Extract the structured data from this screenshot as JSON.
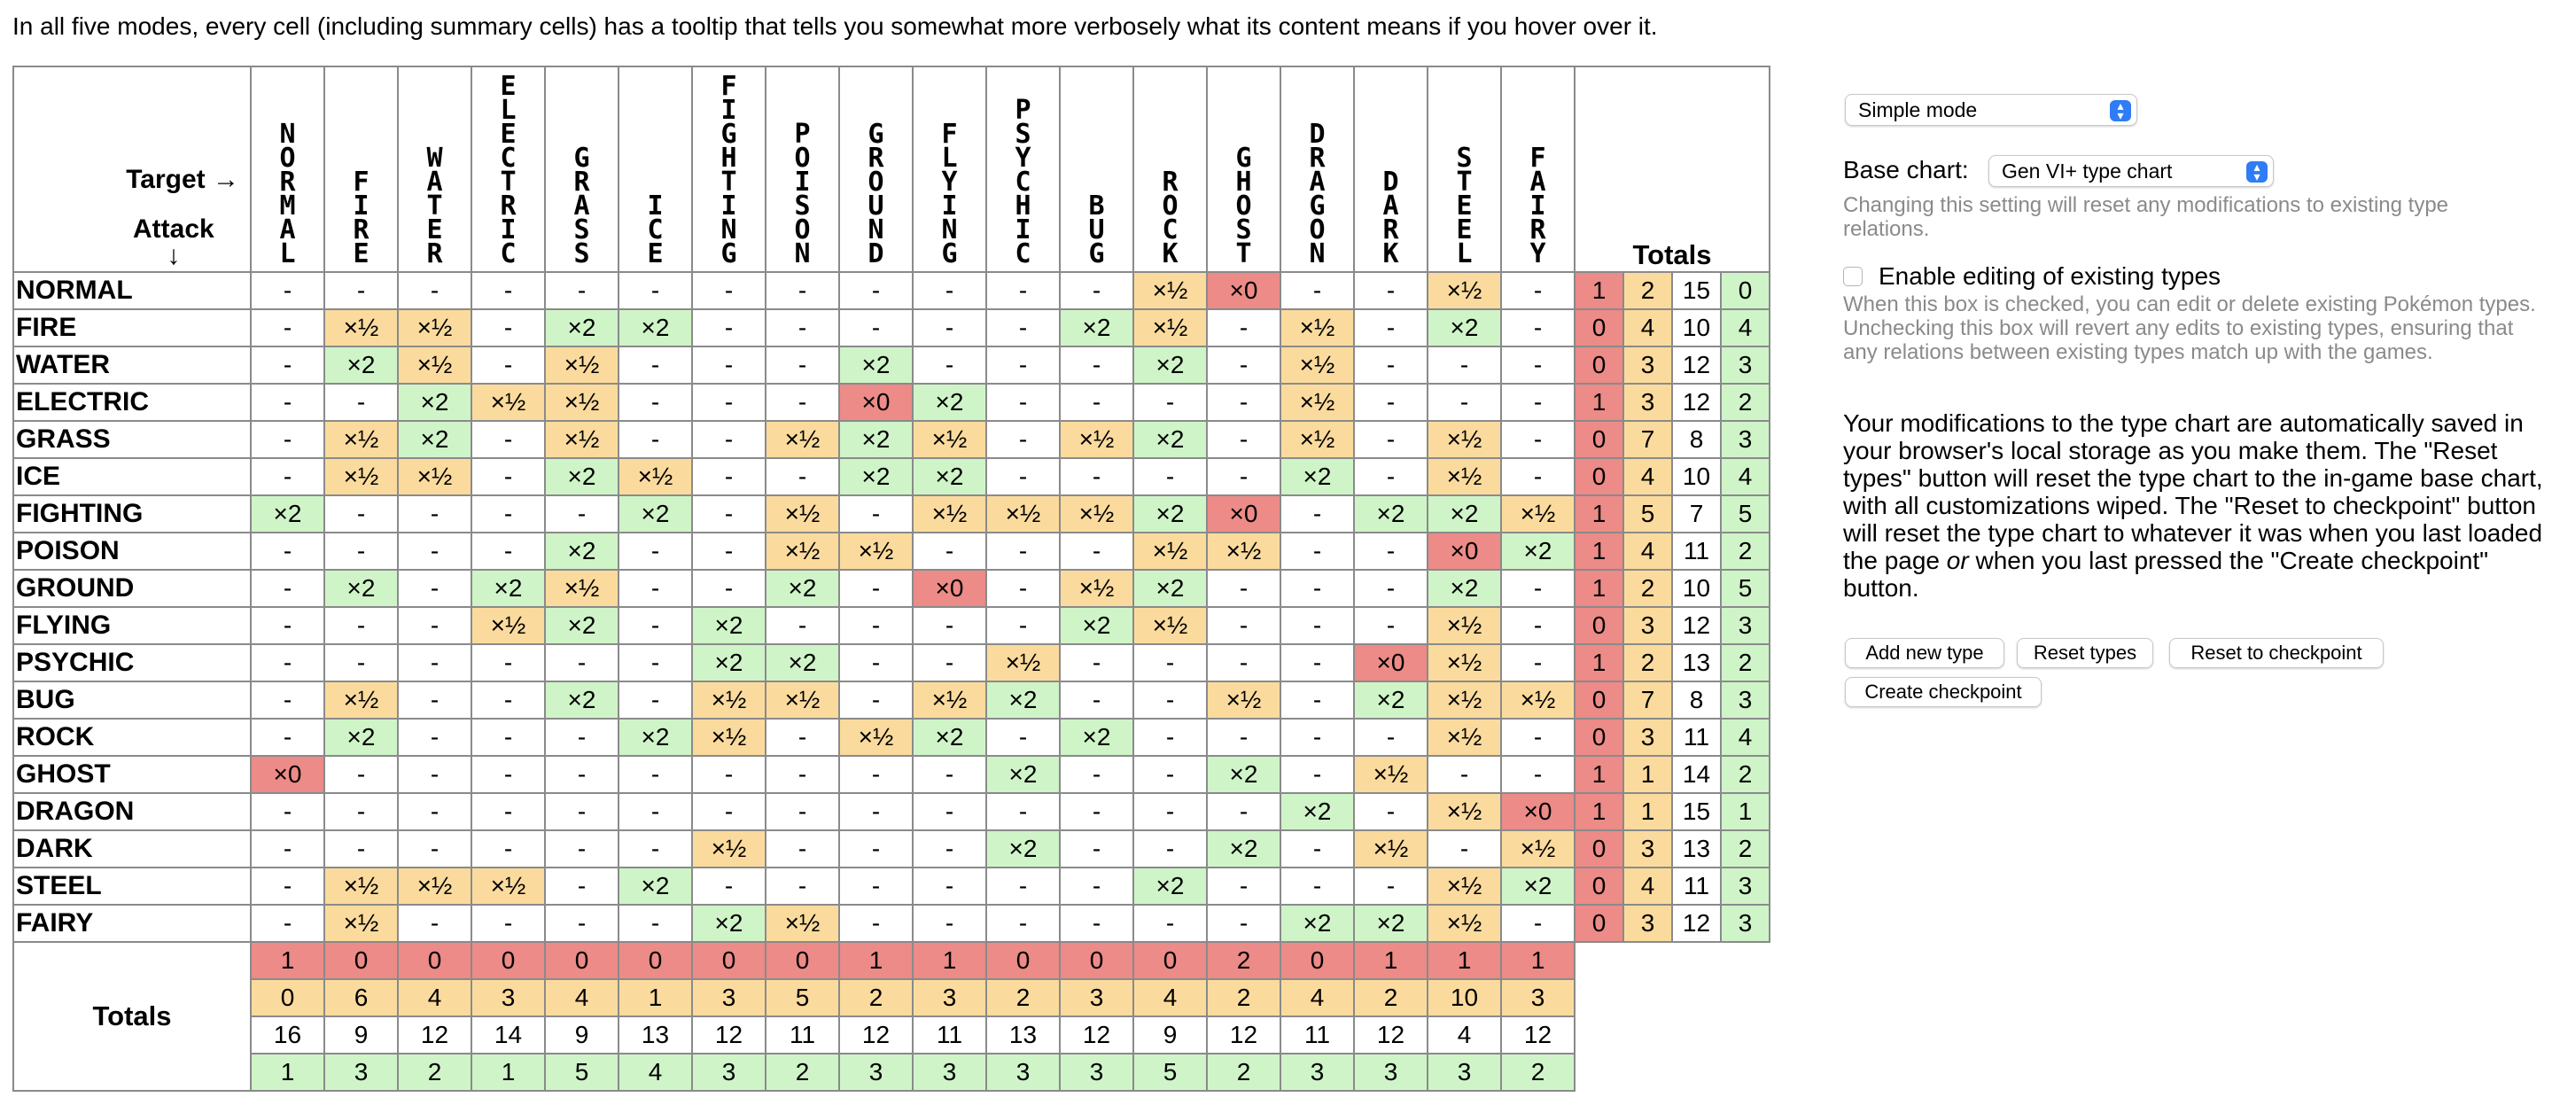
{
  "intro": "In all five modes, every cell (including summary cells) has a tooltip that tells you somewhat more verbosely what its content means if you hover over it.",
  "corner": {
    "target": "Target →",
    "attack": "Attack",
    "attack_arrow": "↓"
  },
  "types": [
    "NORMAL",
    "FIRE",
    "WATER",
    "ELECTRIC",
    "GRASS",
    "ICE",
    "FIGHTING",
    "POISON",
    "GROUND",
    "FLYING",
    "PSYCHIC",
    "BUG",
    "ROCK",
    "GHOST",
    "DRAGON",
    "DARK",
    "STEEL",
    "FAIRY"
  ],
  "totals_label": "Totals",
  "matrix": [
    [
      "-",
      "-",
      "-",
      "-",
      "-",
      "-",
      "-",
      "-",
      "-",
      "-",
      "-",
      "-",
      "×½",
      "×0",
      "-",
      "-",
      "×½",
      "-"
    ],
    [
      "-",
      "×½",
      "×½",
      "-",
      "×2",
      "×2",
      "-",
      "-",
      "-",
      "-",
      "-",
      "×2",
      "×½",
      "-",
      "×½",
      "-",
      "×2",
      "-"
    ],
    [
      "-",
      "×2",
      "×½",
      "-",
      "×½",
      "-",
      "-",
      "-",
      "×2",
      "-",
      "-",
      "-",
      "×2",
      "-",
      "×½",
      "-",
      "-",
      "-"
    ],
    [
      "-",
      "-",
      "×2",
      "×½",
      "×½",
      "-",
      "-",
      "-",
      "×0",
      "×2",
      "-",
      "-",
      "-",
      "-",
      "×½",
      "-",
      "-",
      "-"
    ],
    [
      "-",
      "×½",
      "×2",
      "-",
      "×½",
      "-",
      "-",
      "×½",
      "×2",
      "×½",
      "-",
      "×½",
      "×2",
      "-",
      "×½",
      "-",
      "×½",
      "-"
    ],
    [
      "-",
      "×½",
      "×½",
      "-",
      "×2",
      "×½",
      "-",
      "-",
      "×2",
      "×2",
      "-",
      "-",
      "-",
      "-",
      "×2",
      "-",
      "×½",
      "-"
    ],
    [
      "×2",
      "-",
      "-",
      "-",
      "-",
      "×2",
      "-",
      "×½",
      "-",
      "×½",
      "×½",
      "×½",
      "×2",
      "×0",
      "-",
      "×2",
      "×2",
      "×½"
    ],
    [
      "-",
      "-",
      "-",
      "-",
      "×2",
      "-",
      "-",
      "×½",
      "×½",
      "-",
      "-",
      "-",
      "×½",
      "×½",
      "-",
      "-",
      "×0",
      "×2"
    ],
    [
      "-",
      "×2",
      "-",
      "×2",
      "×½",
      "-",
      "-",
      "×2",
      "-",
      "×0",
      "-",
      "×½",
      "×2",
      "-",
      "-",
      "-",
      "×2",
      "-"
    ],
    [
      "-",
      "-",
      "-",
      "×½",
      "×2",
      "-",
      "×2",
      "-",
      "-",
      "-",
      "-",
      "×2",
      "×½",
      "-",
      "-",
      "-",
      "×½",
      "-"
    ],
    [
      "-",
      "-",
      "-",
      "-",
      "-",
      "-",
      "×2",
      "×2",
      "-",
      "-",
      "×½",
      "-",
      "-",
      "-",
      "-",
      "×0",
      "×½",
      "-"
    ],
    [
      "-",
      "×½",
      "-",
      "-",
      "×2",
      "-",
      "×½",
      "×½",
      "-",
      "×½",
      "×2",
      "-",
      "-",
      "×½",
      "-",
      "×2",
      "×½",
      "×½"
    ],
    [
      "-",
      "×2",
      "-",
      "-",
      "-",
      "×2",
      "×½",
      "-",
      "×½",
      "×2",
      "-",
      "×2",
      "-",
      "-",
      "-",
      "-",
      "×½",
      "-"
    ],
    [
      "×0",
      "-",
      "-",
      "-",
      "-",
      "-",
      "-",
      "-",
      "-",
      "-",
      "×2",
      "-",
      "-",
      "×2",
      "-",
      "×½",
      "-",
      "-"
    ],
    [
      "-",
      "-",
      "-",
      "-",
      "-",
      "-",
      "-",
      "-",
      "-",
      "-",
      "-",
      "-",
      "-",
      "-",
      "×2",
      "-",
      "×½",
      "×0"
    ],
    [
      "-",
      "-",
      "-",
      "-",
      "-",
      "-",
      "×½",
      "-",
      "-",
      "-",
      "×2",
      "-",
      "-",
      "×2",
      "-",
      "×½",
      "-",
      "×½"
    ],
    [
      "-",
      "×½",
      "×½",
      "×½",
      "-",
      "×2",
      "-",
      "-",
      "-",
      "-",
      "-",
      "-",
      "×2",
      "-",
      "-",
      "-",
      "×½",
      "×2"
    ],
    [
      "-",
      "×½",
      "-",
      "-",
      "-",
      "-",
      "×2",
      "×½",
      "-",
      "-",
      "-",
      "-",
      "-",
      "-",
      "×2",
      "×2",
      "×½",
      "-"
    ]
  ],
  "row_totals": [
    [
      "1",
      "2",
      "15",
      "0"
    ],
    [
      "0",
      "4",
      "10",
      "4"
    ],
    [
      "0",
      "3",
      "12",
      "3"
    ],
    [
      "1",
      "3",
      "12",
      "2"
    ],
    [
      "0",
      "7",
      "8",
      "3"
    ],
    [
      "0",
      "4",
      "10",
      "4"
    ],
    [
      "1",
      "5",
      "7",
      "5"
    ],
    [
      "1",
      "4",
      "11",
      "2"
    ],
    [
      "1",
      "2",
      "10",
      "5"
    ],
    [
      "0",
      "3",
      "12",
      "3"
    ],
    [
      "1",
      "2",
      "13",
      "2"
    ],
    [
      "0",
      "7",
      "8",
      "3"
    ],
    [
      "0",
      "3",
      "11",
      "4"
    ],
    [
      "1",
      "1",
      "14",
      "2"
    ],
    [
      "1",
      "1",
      "15",
      "1"
    ],
    [
      "0",
      "3",
      "13",
      "2"
    ],
    [
      "0",
      "4",
      "11",
      "3"
    ],
    [
      "0",
      "3",
      "12",
      "3"
    ]
  ],
  "col_totals": [
    [
      "1",
      "0",
      "0",
      "0",
      "0",
      "0",
      "0",
      "0",
      "1",
      "1",
      "0",
      "0",
      "0",
      "2",
      "0",
      "1",
      "1",
      "1"
    ],
    [
      "0",
      "6",
      "4",
      "3",
      "4",
      "1",
      "3",
      "5",
      "2",
      "3",
      "2",
      "3",
      "4",
      "2",
      "4",
      "2",
      "10",
      "3"
    ],
    [
      "16",
      "9",
      "12",
      "14",
      "9",
      "13",
      "12",
      "11",
      "12",
      "11",
      "13",
      "12",
      "9",
      "12",
      "11",
      "12",
      "4",
      "12"
    ],
    [
      "1",
      "3",
      "2",
      "1",
      "5",
      "4",
      "3",
      "2",
      "3",
      "3",
      "3",
      "3",
      "5",
      "2",
      "3",
      "3",
      "3",
      "2"
    ]
  ],
  "colors": {
    "super_effective": "#cff4c8",
    "not_very": "#fbdb9d",
    "immune": "#ec8b87",
    "accent": "#2f7df6"
  },
  "panel": {
    "mode_select": "Simple mode",
    "base_chart_label": "Base chart:",
    "base_chart_value": "Gen VI+ type chart",
    "base_chart_note": "Changing this setting will reset any modifications to existing type relations.",
    "edit_label": "Enable editing of existing types",
    "edit_checked": false,
    "edit_note": "When this box is checked, you can edit or delete existing Pokémon types. Unchecking this box will revert any edits to existing types, ensuring that any relations between existing types match up with the games.",
    "storage_note_before": "Your modifications to the type chart are automatically saved in your browser's local storage as you make them. The \"Reset types\" button will reset the type chart to the in-game base chart, with all customizations wiped. The \"Reset to checkpoint\" button will reset the type chart to whatever it was when you last loaded the page ",
    "storage_note_em": "or",
    "storage_note_after": " when you last pressed the \"Create checkpoint\" button.",
    "buttons": {
      "add": "Add new type",
      "reset": "Reset types",
      "reset_checkpoint": "Reset to checkpoint",
      "create_checkpoint": "Create checkpoint"
    }
  }
}
